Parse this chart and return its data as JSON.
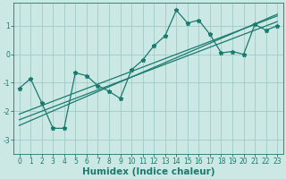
{
  "x": [
    0,
    1,
    2,
    3,
    4,
    5,
    6,
    7,
    8,
    9,
    10,
    11,
    12,
    13,
    14,
    15,
    16,
    17,
    18,
    19,
    20,
    21,
    22,
    23
  ],
  "y_line": [
    -1.2,
    -0.85,
    -1.7,
    -2.6,
    -2.6,
    -0.65,
    -0.75,
    -1.1,
    -1.3,
    -1.55,
    -0.55,
    -0.2,
    0.3,
    0.65,
    1.55,
    1.1,
    1.2,
    0.7,
    0.05,
    0.1,
    0.0,
    1.05,
    0.85,
    1.0
  ],
  "regression_line1": [
    -2.3,
    -2.15,
    -2.0,
    -1.85,
    -1.7,
    -1.55,
    -1.4,
    -1.25,
    -1.1,
    -0.95,
    -0.8,
    -0.65,
    -0.5,
    -0.35,
    -0.2,
    -0.05,
    0.1,
    0.25,
    0.4,
    0.55,
    0.7,
    0.85,
    1.0,
    1.15
  ],
  "regression_line2": [
    -2.5,
    -2.33,
    -2.16,
    -1.99,
    -1.82,
    -1.65,
    -1.48,
    -1.31,
    -1.14,
    -0.97,
    -0.8,
    -0.63,
    -0.46,
    -0.29,
    -0.12,
    0.05,
    0.22,
    0.39,
    0.56,
    0.73,
    0.9,
    1.07,
    1.24,
    1.41
  ],
  "regression_line3": [
    -2.1,
    -1.95,
    -1.8,
    -1.65,
    -1.5,
    -1.35,
    -1.2,
    -1.05,
    -0.9,
    -0.75,
    -0.6,
    -0.45,
    -0.3,
    -0.15,
    0.0,
    0.15,
    0.3,
    0.45,
    0.6,
    0.75,
    0.9,
    1.05,
    1.2,
    1.35
  ],
  "line_color": "#1a7a6e",
  "bg_color": "#cce8e4",
  "grid_color": "#a0ccc8",
  "xlabel": "Humidex (Indice chaleur)",
  "xlim_min": -0.5,
  "xlim_max": 23.5,
  "ylim_min": -3.5,
  "ylim_max": 1.8,
  "yticks": [
    -3,
    -2,
    -1,
    0,
    1
  ],
  "xticks": [
    0,
    1,
    2,
    3,
    4,
    5,
    6,
    7,
    8,
    9,
    10,
    11,
    12,
    13,
    14,
    15,
    16,
    17,
    18,
    19,
    20,
    21,
    22,
    23
  ],
  "tick_fontsize": 5.5,
  "xlabel_fontsize": 7.5,
  "marker": "*",
  "markersize": 3.5,
  "linewidth": 0.9,
  "reg_linewidth": 0.9
}
